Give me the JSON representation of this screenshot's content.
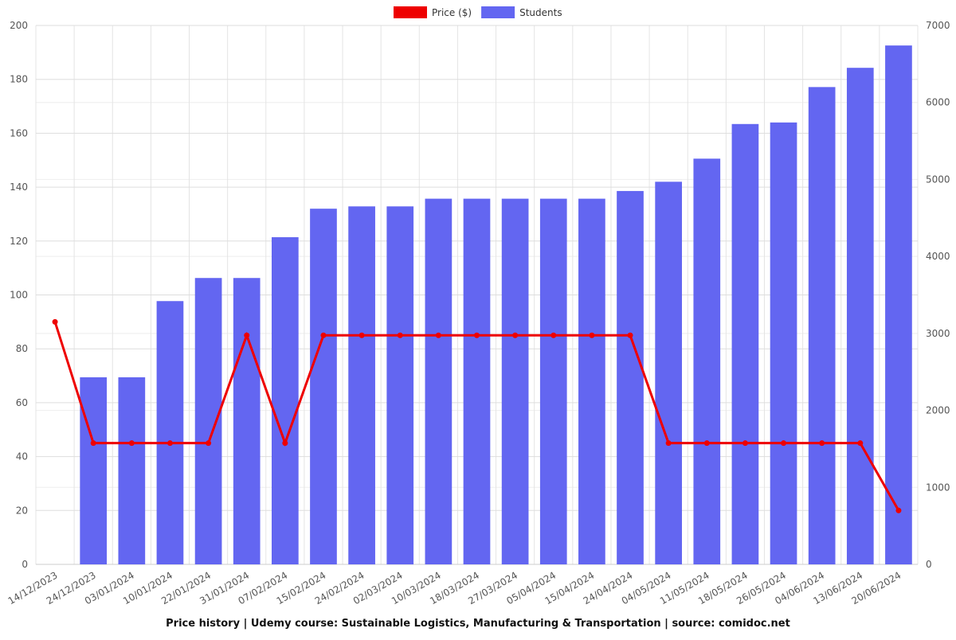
{
  "chart_data": {
    "type": "bar-line",
    "title": "Price history | Udemy course: Sustainable Logistics, Manufacturing & Transportation | source: comidoc.net",
    "categories": [
      "14/12/2023",
      "24/12/2023",
      "03/01/2024",
      "10/01/2024",
      "22/01/2024",
      "31/01/2024",
      "07/02/2024",
      "15/02/2024",
      "24/02/2024",
      "02/03/2024",
      "10/03/2024",
      "18/03/2024",
      "27/03/2024",
      "05/04/2024",
      "15/04/2024",
      "24/04/2024",
      "04/05/2024",
      "11/05/2024",
      "18/05/2024",
      "26/05/2024",
      "04/06/2024",
      "13/06/2024",
      "20/06/2024"
    ],
    "series": [
      {
        "name": "Price ($)",
        "color": "#ee0000",
        "type": "line",
        "axis": "y",
        "values": [
          90,
          45,
          45,
          45,
          45,
          85,
          45,
          85,
          85,
          85,
          85,
          85,
          85,
          85,
          85,
          85,
          45,
          45,
          45,
          45,
          45,
          45,
          20
        ]
      },
      {
        "name": "Students",
        "color": "#6366f1",
        "type": "bar",
        "axis": "y2",
        "values": [
          0,
          2430,
          2430,
          3420,
          3720,
          3720,
          4250,
          4620,
          4650,
          4650,
          4750,
          4750,
          4750,
          4750,
          4750,
          4850,
          4970,
          5270,
          5720,
          5740,
          6200,
          6450,
          6740
        ]
      }
    ],
    "ylim": [
      0,
      200
    ],
    "yticks": [
      0,
      20,
      40,
      60,
      80,
      100,
      120,
      140,
      160,
      180,
      200
    ],
    "y2lim": [
      0,
      7000
    ],
    "y2ticks": [
      0,
      1000,
      2000,
      3000,
      4000,
      5000,
      6000,
      7000
    ],
    "grid": true
  }
}
